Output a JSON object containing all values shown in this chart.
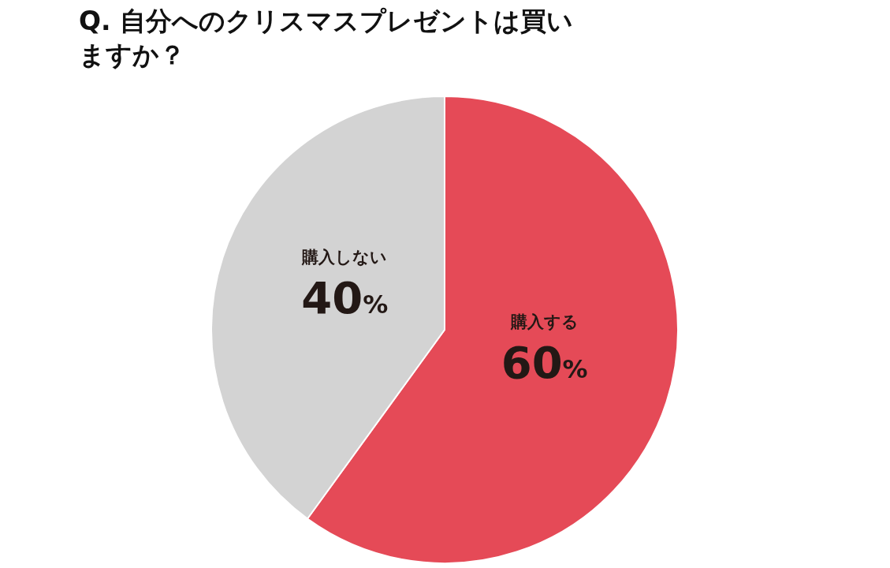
{
  "chart_data": {
    "type": "pie",
    "title": "Q. 自分へのクリスマスプレゼントは買いますか？",
    "categories": [
      "購入する",
      "購入しない"
    ],
    "values": [
      60,
      40
    ],
    "colors": [
      "#e54a57",
      "#d3d3d3"
    ],
    "value_labels": [
      "60%",
      "40%"
    ],
    "legend": false
  }
}
